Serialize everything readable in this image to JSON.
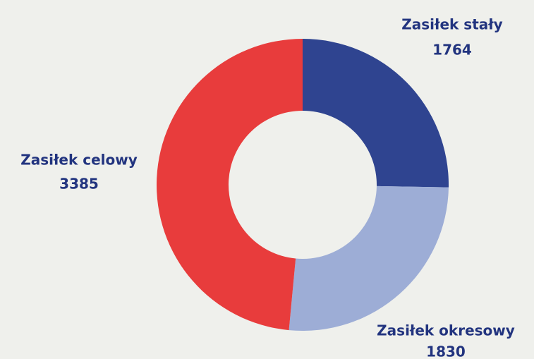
{
  "chart_data": {
    "type": "donut",
    "categories": [
      "Zasiłek stały",
      "Zasiłek okresowy",
      "Zasiłek celowy"
    ],
    "values": [
      1764,
      1830,
      3385
    ],
    "colors": [
      "#2f4490",
      "#9dadd6",
      "#e83c3c"
    ]
  }
}
